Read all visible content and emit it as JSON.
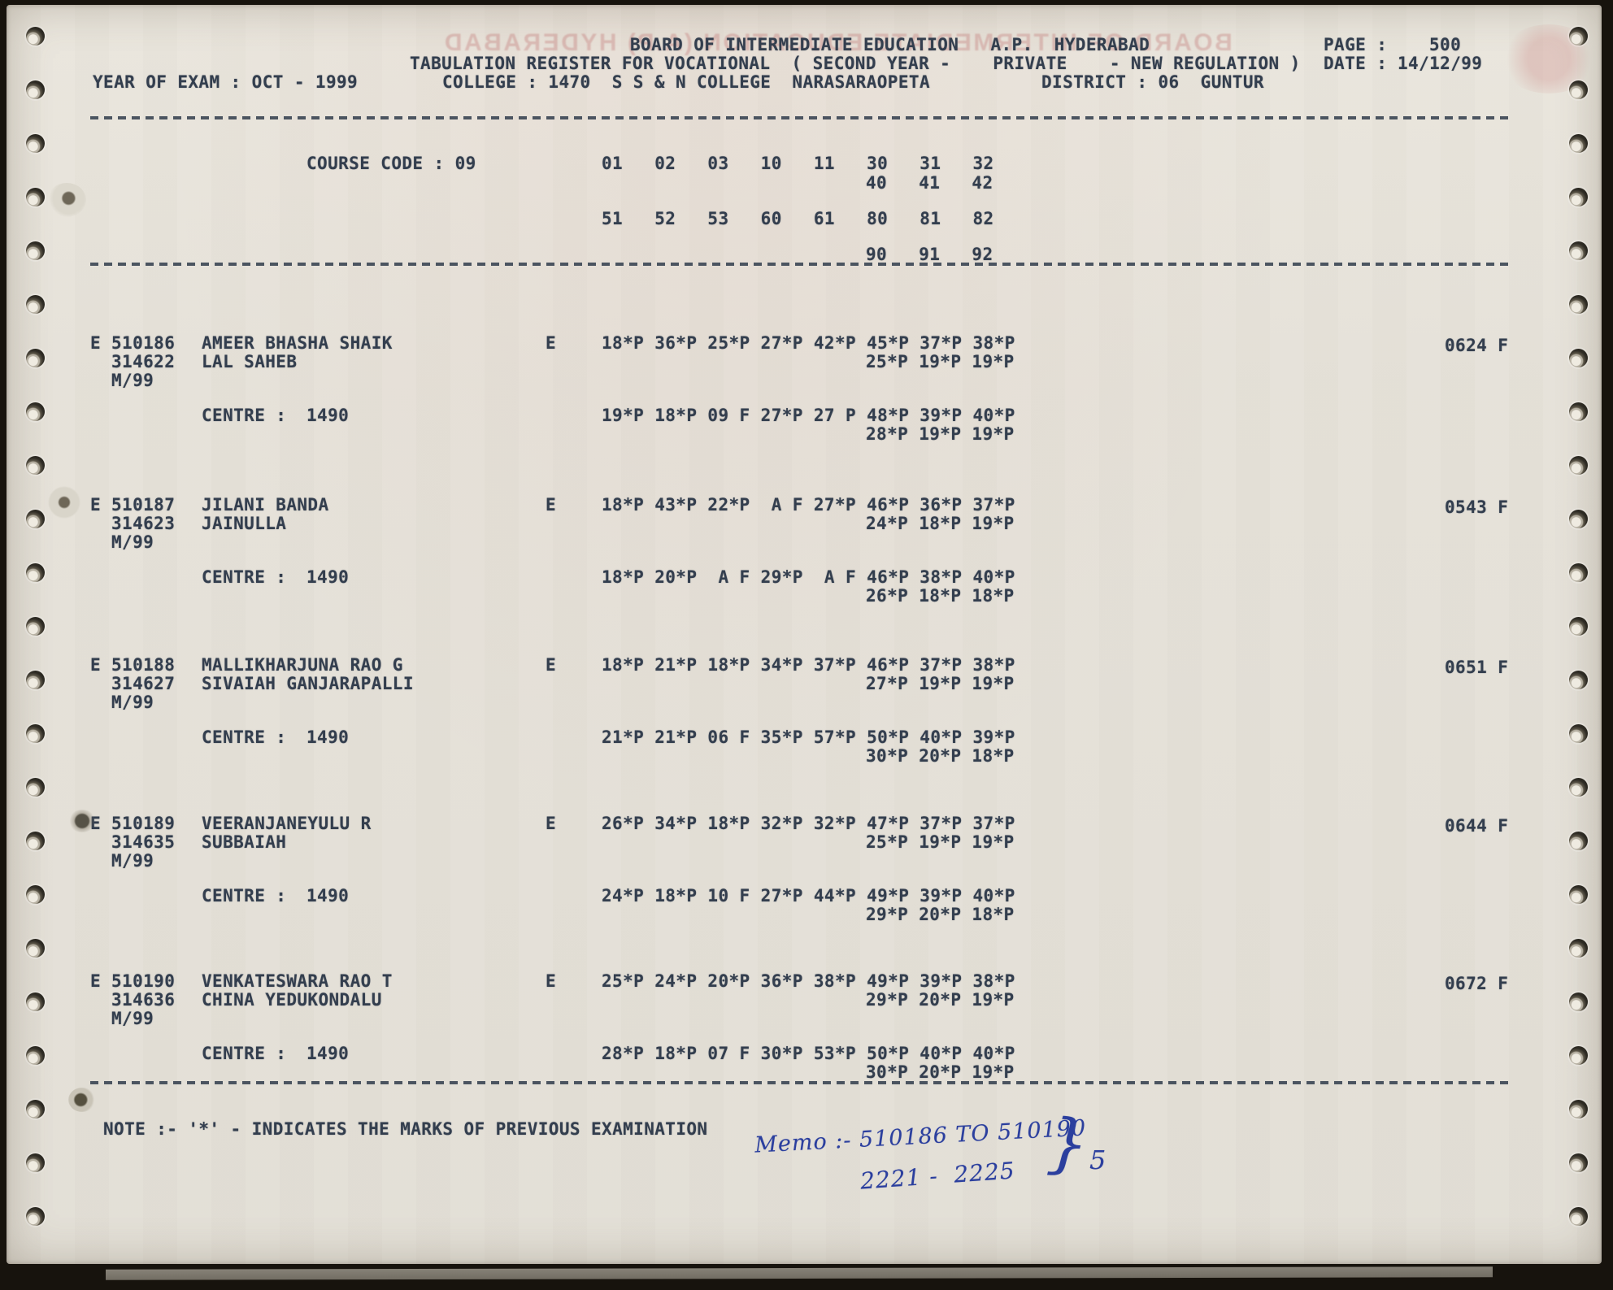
{
  "colors": {
    "paper": "#e6e2d9",
    "ink": "#333e4e",
    "handwriting_ink": "#2b3f9e",
    "ghost_pink": "#b95f5f",
    "frame": "#17130d"
  },
  "ghost": {
    "verso_title": "BOARD OF INTERMEDIATE EDUCATION (A.P) HYDERABAD"
  },
  "header": {
    "board": "BOARD OF INTERMEDIATE EDUCATION   A.P.  HYDERABAD",
    "page_label": "PAGE :",
    "page_value": "500",
    "register_line": "TABULATION REGISTER FOR VOCATIONAL  ( SECOND YEAR -    PRIVATE    - NEW REGULATION )",
    "date_label": "DATE :",
    "date_value": "14/12/99",
    "year_of_exam": "YEAR OF EXAM : OCT - 1999",
    "college": "COLLEGE : 1470  S S & N COLLEGE  NARASARAOPETA",
    "district": "DISTRICT : 06  GUNTUR"
  },
  "course": {
    "label": "COURSE CODE : 09",
    "codes_row1": "01   02   03   10   11   30   31   32",
    "codes_row1b": "40   41   42",
    "codes_row2": "51   52   53   60   61   80   81   82",
    "codes_row2b": "90   91   92"
  },
  "students": [
    {
      "flag": "E",
      "reg_no": "510186",
      "name": "AMEER BHASHA SHAIK",
      "father_no": "314622",
      "father_name": "LAL SAHEB",
      "appearance": "M/99",
      "medium": "E",
      "marks1": "18*P 36*P 25*P 27*P 42*P 45*P 37*P 38*P",
      "marks2": "25*P 19*P 19*P",
      "total": "0624 F",
      "centre_label": "CENTRE :",
      "centre_code": "1490",
      "centre_marks1": "19*P 18*P 09 F 27*P 27 P 48*P 39*P 40*P",
      "centre_marks2": "28*P 19*P 19*P"
    },
    {
      "flag": "E",
      "reg_no": "510187",
      "name": "JILANI BANDA",
      "father_no": "314623",
      "father_name": "JAINULLA",
      "appearance": "M/99",
      "medium": "E",
      "marks1": "18*P 43*P 22*P  A F 27*P 46*P 36*P 37*P",
      "marks2": "24*P 18*P 19*P",
      "total": "0543 F",
      "centre_label": "CENTRE :",
      "centre_code": "1490",
      "centre_marks1": "18*P 20*P  A F 29*P  A F 46*P 38*P 40*P",
      "centre_marks2": "26*P 18*P 18*P"
    },
    {
      "flag": "E",
      "reg_no": "510188",
      "name": "MALLIKHARJUNA RAO G",
      "father_no": "314627",
      "father_name": "SIVAIAH GANJARAPALLI",
      "appearance": "M/99",
      "medium": "E",
      "marks1": "18*P 21*P 18*P 34*P 37*P 46*P 37*P 38*P",
      "marks2": "27*P 19*P 19*P",
      "total": "0651 F",
      "centre_label": "CENTRE :",
      "centre_code": "1490",
      "centre_marks1": "21*P 21*P 06 F 35*P 57*P 50*P 40*P 39*P",
      "centre_marks2": "30*P 20*P 18*P"
    },
    {
      "flag": "E",
      "reg_no": "510189",
      "name": "VEERANJANEYULU R",
      "father_no": "314635",
      "father_name": "SUBBAIAH",
      "appearance": "M/99",
      "medium": "E",
      "marks1": "26*P 34*P 18*P 32*P 32*P 47*P 37*P 37*P",
      "marks2": "25*P 19*P 19*P",
      "total": "0644 F",
      "centre_label": "CENTRE :",
      "centre_code": "1490",
      "centre_marks1": "24*P 18*P 10 F 27*P 44*P 49*P 39*P 40*P",
      "centre_marks2": "29*P 20*P 18*P"
    },
    {
      "flag": "E",
      "reg_no": "510190",
      "name": "VENKATESWARA RAO T",
      "father_no": "314636",
      "father_name": "CHINA YEDUKONDALU",
      "appearance": "M/99",
      "medium": "E",
      "marks1": "25*P 24*P 20*P 36*P 38*P 49*P 39*P 38*P",
      "marks2": "29*P 20*P 19*P",
      "total": "0672 F",
      "centre_label": "CENTRE :",
      "centre_code": "1490",
      "centre_marks1": "28*P 18*P 07 F 30*P 53*P 50*P 40*P 40*P",
      "centre_marks2": "30*P 20*P 19*P"
    }
  ],
  "note": "NOTE :- '*' - INDICATES THE MARKS OF PREVIOUS EXAMINATION",
  "memo": {
    "line1": "Memo :- 510186 TO 510190",
    "line2": "2221 -  2225",
    "brace": "}",
    "count": "5"
  }
}
